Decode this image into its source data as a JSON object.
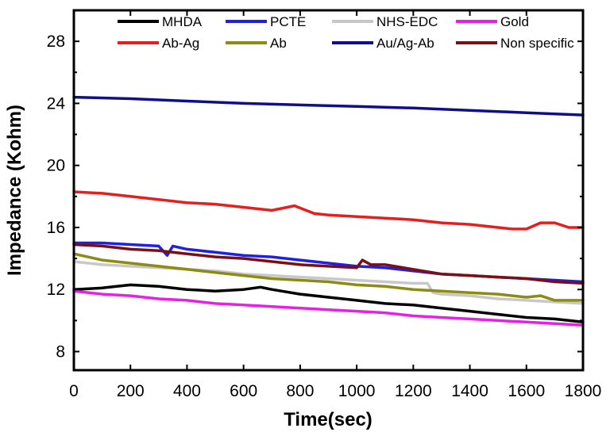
{
  "chart_data": {
    "type": "line",
    "xlabel": "Time(sec)",
    "ylabel": "Impedance (Kohm)",
    "xlim": [
      0,
      1800
    ],
    "ylim": [
      6.8,
      30
    ],
    "xticks": [
      0,
      200,
      400,
      600,
      800,
      1000,
      1200,
      1400,
      1600,
      1800
    ],
    "yticks": [
      8,
      12,
      16,
      20,
      24,
      28
    ],
    "grid": false,
    "legend_position": "top",
    "series": [
      {
        "name": "MHDA",
        "color": "#000000",
        "x": [
          0,
          100,
          200,
          300,
          400,
          500,
          600,
          660,
          700,
          800,
          900,
          1000,
          1100,
          1200,
          1300,
          1400,
          1500,
          1600,
          1700,
          1800
        ],
        "y": [
          12.0,
          12.1,
          12.3,
          12.2,
          12.0,
          11.9,
          12.0,
          12.15,
          12.0,
          11.7,
          11.5,
          11.3,
          11.1,
          11.0,
          10.8,
          10.6,
          10.4,
          10.2,
          10.1,
          9.9
        ]
      },
      {
        "name": "PCTE",
        "color": "#1f1fe6",
        "x": [
          0,
          100,
          200,
          300,
          330,
          350,
          400,
          500,
          600,
          700,
          800,
          900,
          1000,
          1100,
          1200,
          1300,
          1400,
          1500,
          1600,
          1700,
          1800
        ],
        "y": [
          15.0,
          15.0,
          14.9,
          14.8,
          14.2,
          14.8,
          14.6,
          14.4,
          14.2,
          14.1,
          13.9,
          13.7,
          13.5,
          13.4,
          13.2,
          13.0,
          12.9,
          12.8,
          12.7,
          12.6,
          12.5
        ]
      },
      {
        "name": "NHS-EDC",
        "color": "#c8c8c8",
        "x": [
          0,
          100,
          200,
          300,
          400,
          500,
          600,
          700,
          800,
          900,
          1000,
          1100,
          1200,
          1250,
          1270,
          1300,
          1400,
          1500,
          1600,
          1700,
          1800
        ],
        "y": [
          13.8,
          13.6,
          13.5,
          13.4,
          13.3,
          13.2,
          13.0,
          12.9,
          12.8,
          12.7,
          12.6,
          12.5,
          12.4,
          12.4,
          11.8,
          11.7,
          11.6,
          11.4,
          11.3,
          11.2,
          11.1
        ]
      },
      {
        "name": "Gold",
        "color": "#e620e6",
        "x": [
          0,
          100,
          200,
          300,
          400,
          500,
          600,
          700,
          800,
          900,
          1000,
          1100,
          1200,
          1300,
          1400,
          1500,
          1600,
          1700,
          1800
        ],
        "y": [
          11.9,
          11.7,
          11.6,
          11.4,
          11.3,
          11.1,
          11.0,
          10.9,
          10.8,
          10.7,
          10.6,
          10.5,
          10.3,
          10.2,
          10.1,
          10.0,
          9.9,
          9.8,
          9.7
        ]
      },
      {
        "name": "Ab-Ag",
        "color": "#e61e1e",
        "x": [
          0,
          100,
          200,
          300,
          400,
          500,
          600,
          700,
          780,
          850,
          900,
          1000,
          1100,
          1200,
          1300,
          1400,
          1500,
          1550,
          1600,
          1650,
          1700,
          1750,
          1800
        ],
        "y": [
          18.3,
          18.2,
          18.0,
          17.8,
          17.6,
          17.5,
          17.3,
          17.1,
          17.4,
          16.9,
          16.8,
          16.7,
          16.6,
          16.5,
          16.3,
          16.2,
          16.0,
          15.9,
          15.9,
          16.3,
          16.3,
          16.0,
          16.0
        ]
      },
      {
        "name": "Ab",
        "color": "#8c8c14",
        "x": [
          0,
          100,
          200,
          300,
          400,
          500,
          600,
          700,
          800,
          900,
          1000,
          1100,
          1200,
          1300,
          1400,
          1500,
          1600,
          1650,
          1700,
          1750,
          1800
        ],
        "y": [
          14.3,
          13.9,
          13.7,
          13.5,
          13.3,
          13.1,
          12.9,
          12.7,
          12.6,
          12.5,
          12.3,
          12.2,
          12.0,
          11.9,
          11.8,
          11.7,
          11.5,
          11.6,
          11.3,
          11.3,
          11.3
        ]
      },
      {
        "name": "Au/Ag-Ab",
        "color": "#0f0f8c",
        "x": [
          0,
          200,
          400,
          600,
          800,
          1000,
          1200,
          1400,
          1600,
          1800
        ],
        "y": [
          24.4,
          24.3,
          24.15,
          24.0,
          23.9,
          23.8,
          23.7,
          23.55,
          23.4,
          23.25
        ]
      },
      {
        "name": "Non specific",
        "color": "#7a0f14",
        "x": [
          0,
          100,
          200,
          300,
          400,
          500,
          600,
          700,
          800,
          900,
          1000,
          1020,
          1050,
          1100,
          1200,
          1300,
          1400,
          1500,
          1600,
          1700,
          1800
        ],
        "y": [
          14.9,
          14.8,
          14.6,
          14.5,
          14.3,
          14.1,
          14.0,
          13.8,
          13.6,
          13.5,
          13.4,
          13.9,
          13.6,
          13.6,
          13.3,
          13.0,
          12.9,
          12.8,
          12.7,
          12.5,
          12.4
        ]
      }
    ]
  }
}
